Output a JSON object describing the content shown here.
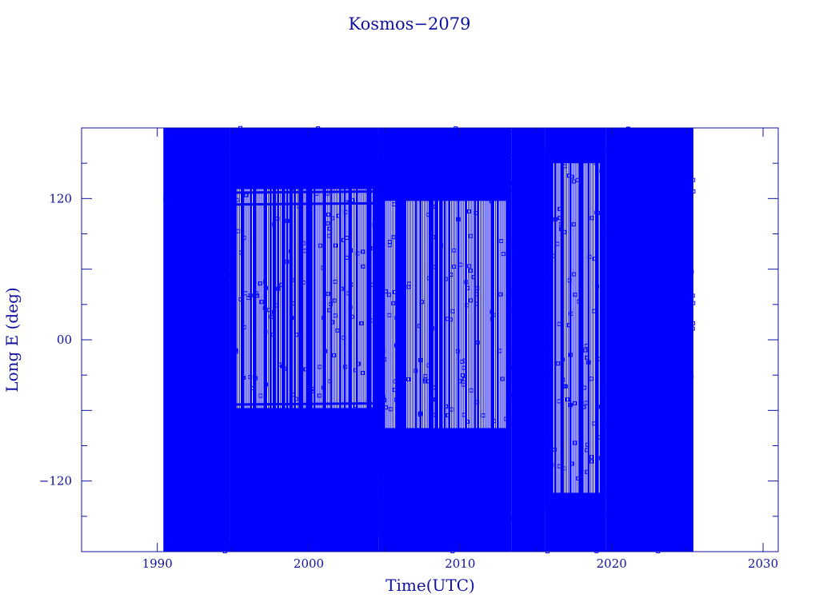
{
  "chart_data": {
    "type": "line",
    "title": "Kosmos−2079",
    "xlabel": "Time(UTC)",
    "ylabel": "Long E (deg)",
    "xlim": [
      1985,
      2031
    ],
    "ylim": [
      -180,
      180
    ],
    "xticks": [
      1990,
      2000,
      2010,
      2020,
      2030
    ],
    "yticks": [
      120,
      0,
      -120
    ],
    "ytick_labels": [
      "120",
      "00",
      "−120"
    ],
    "grid": false,
    "colors": {
      "axes": "#1010a0",
      "series": "#0000ff"
    },
    "series": [
      {
        "x": [
          1990.4,
          1994.8,
          1994.8,
          2004.6,
          2004.6,
          2013.4,
          2013.4,
          2015.6,
          2015.6,
          2019.6,
          2019.6,
          2025.4
        ],
        "y_dense_range": [
          -180,
          180
        ]
      }
    ],
    "plateaus": [
      {
        "x_start": 1995.0,
        "x_end": 2004.6,
        "y_values": [
          125,
          150,
          115,
          -55,
          -75,
          -95,
          -115
        ]
      },
      {
        "x_start": 2004.6,
        "x_end": 2013.0,
        "y_values": [
          120,
          -90
        ]
      }
    ]
  }
}
